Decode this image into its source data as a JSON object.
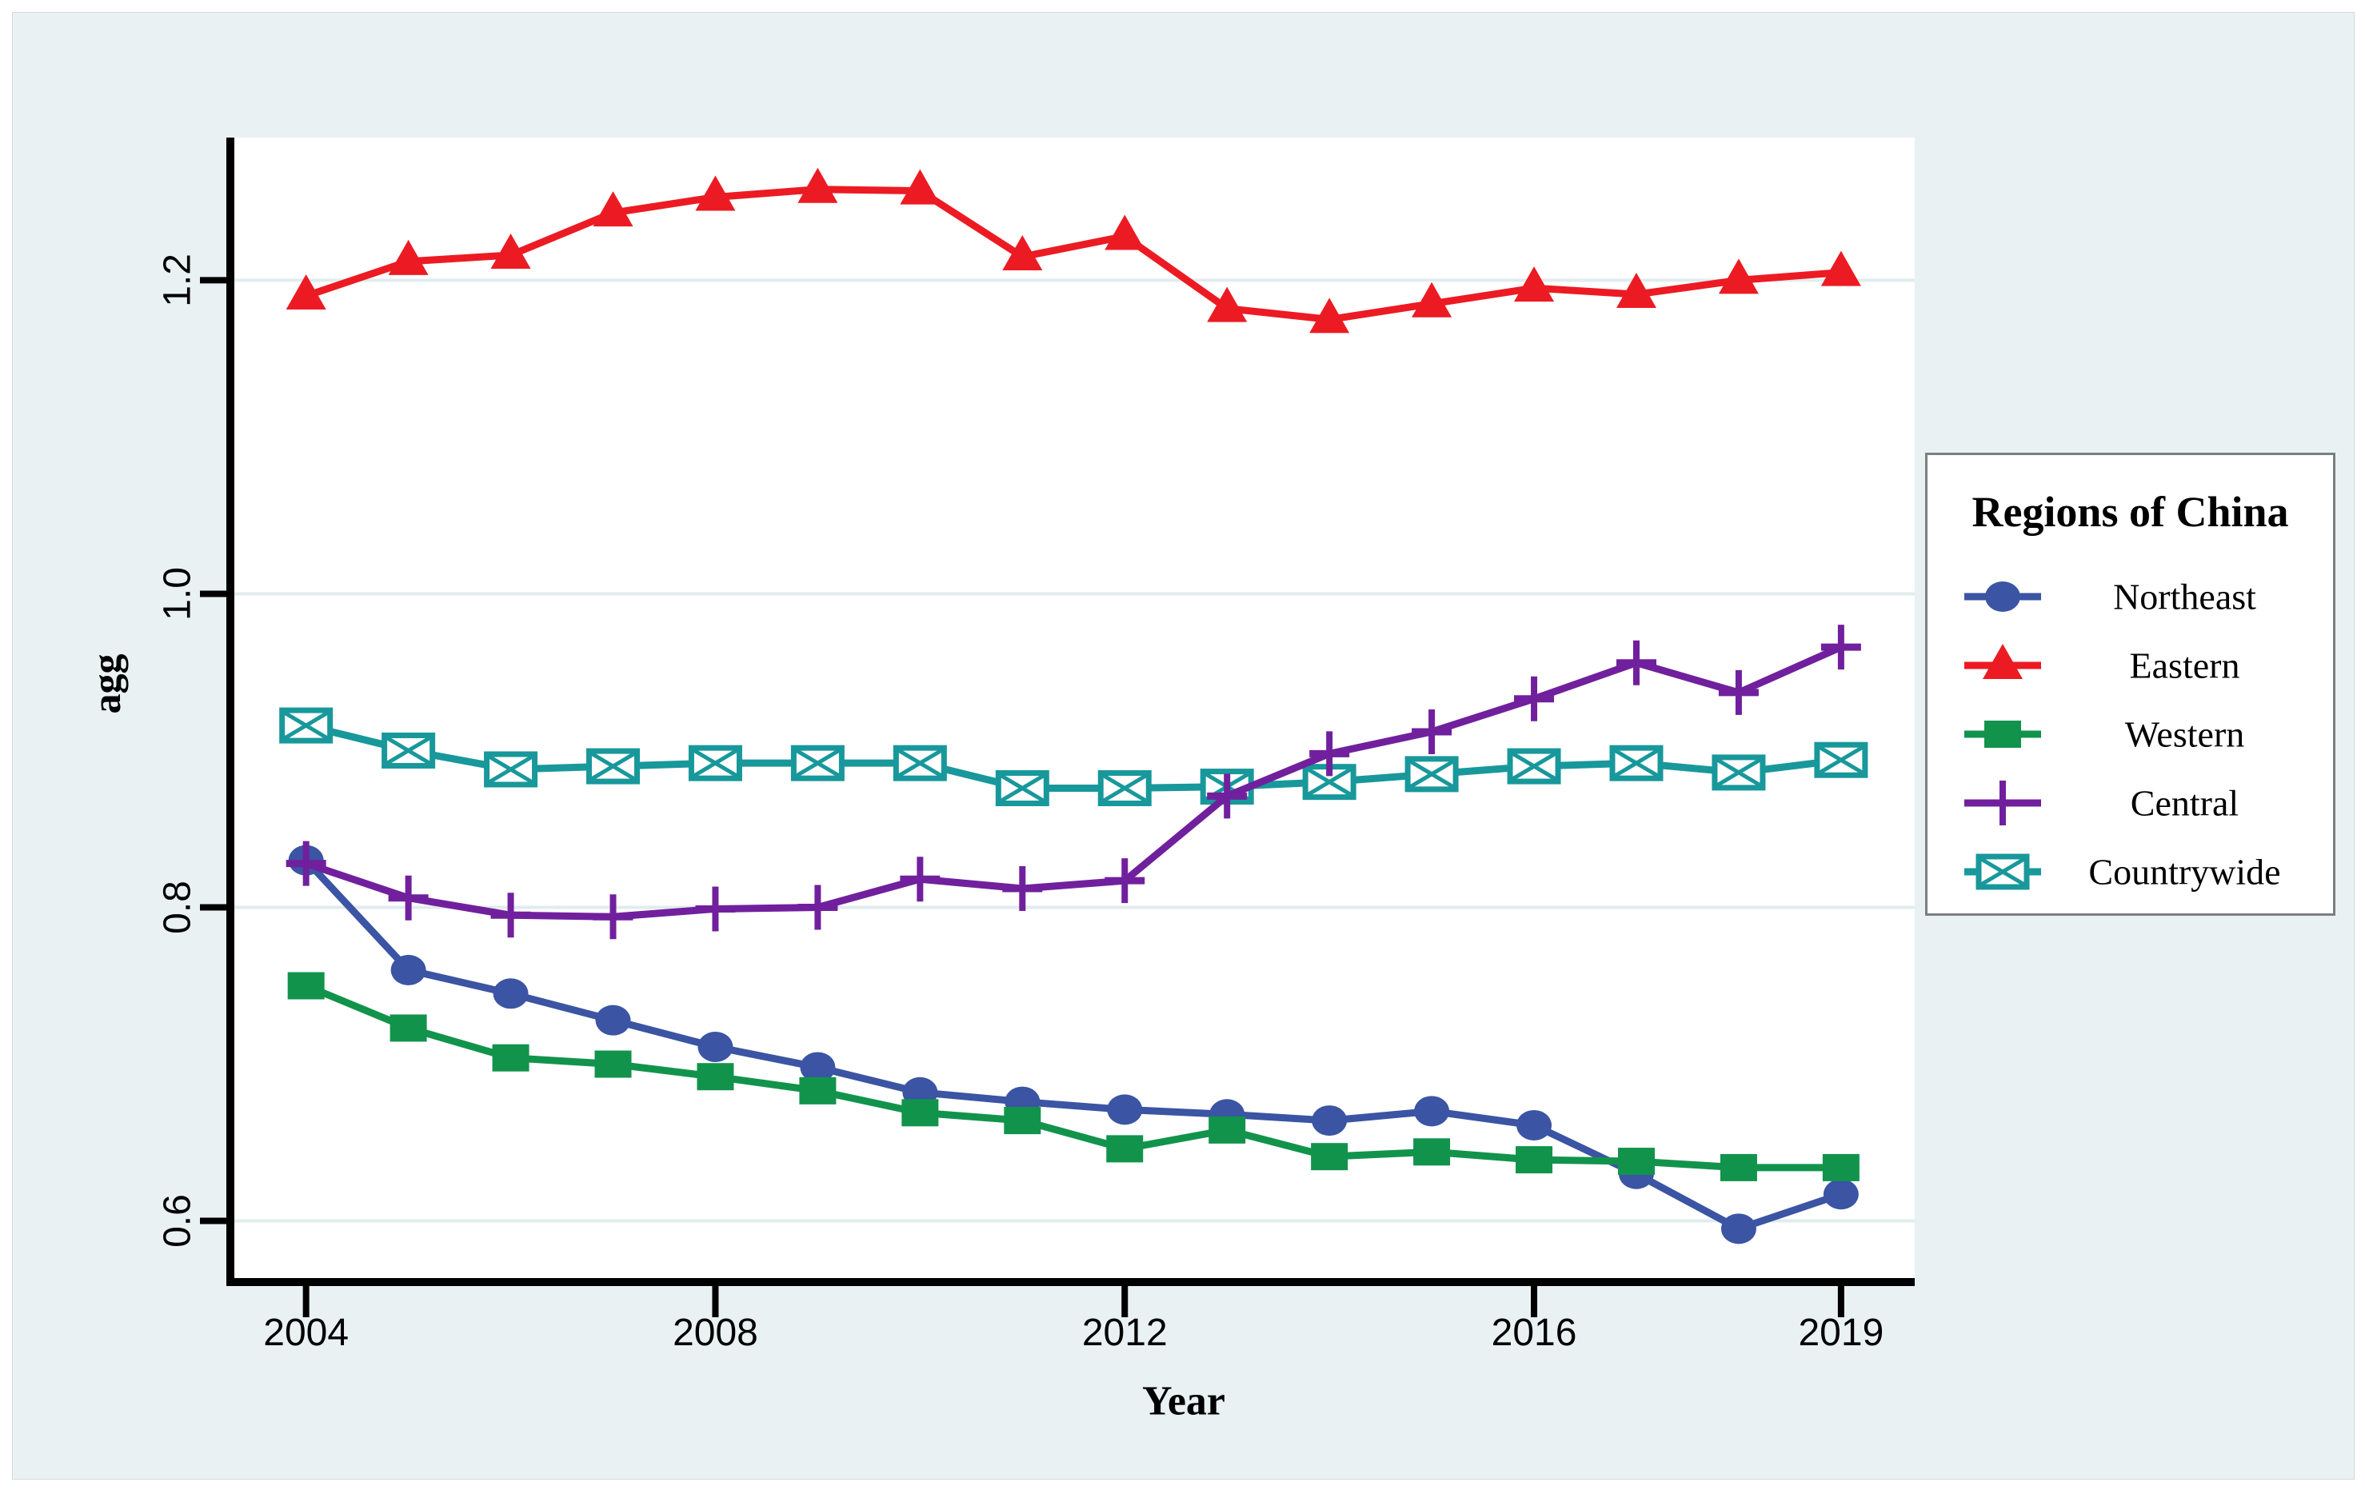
{
  "page": {
    "background": "#ffffff",
    "panel_color": "#e9f1f2"
  },
  "chart_data": {
    "type": "line",
    "title": "",
    "xlabel": "Year",
    "ylabel": "agg",
    "x": [
      2004,
      2005,
      2006,
      2007,
      2008,
      2009,
      2010,
      2011,
      2012,
      2013,
      2014,
      2015,
      2016,
      2017,
      2018,
      2019
    ],
    "xlim": [
      2003.26,
      2019.72
    ],
    "ylim": [
      0.561,
      1.291
    ],
    "x_ticks": [
      {
        "value": 2004,
        "label": "2004"
      },
      {
        "value": 2008,
        "label": "2008"
      },
      {
        "value": 2012,
        "label": "2012"
      },
      {
        "value": 2016,
        "label": "2016"
      },
      {
        "value": 2019,
        "label": "2019"
      }
    ],
    "y_ticks": [
      {
        "value": 0.6,
        "label": "0.6"
      },
      {
        "value": 0.8,
        "label": "0.8"
      },
      {
        "value": 1.0,
        "label": "1.0"
      },
      {
        "value": 1.2,
        "label": "1.2"
      }
    ],
    "grid": true,
    "legend_position": "right",
    "series": [
      {
        "name": "Northeast",
        "color": "#3b54a3",
        "marker": "circle",
        "values": [
          0.83,
          0.76,
          0.745,
          0.728,
          0.711,
          0.698,
          0.682,
          0.676,
          0.671,
          0.668,
          0.664,
          0.67,
          0.661,
          0.63,
          0.595,
          0.617
        ]
      },
      {
        "name": "Eastern",
        "color": "#ec1b23",
        "marker": "triangle",
        "values": [
          1.19,
          1.212,
          1.216,
          1.243,
          1.253,
          1.258,
          1.257,
          1.215,
          1.228,
          1.182,
          1.175,
          1.185,
          1.195,
          1.191,
          1.2,
          1.205
        ]
      },
      {
        "name": "Western",
        "color": "#12934c",
        "marker": "square",
        "values": [
          0.75,
          0.723,
          0.704,
          0.7,
          0.692,
          0.683,
          0.669,
          0.664,
          0.646,
          0.658,
          0.641,
          0.644,
          0.639,
          0.638,
          0.634,
          0.634
        ]
      },
      {
        "name": "Central",
        "color": "#71209d",
        "marker": "plus",
        "values": [
          0.828,
          0.806,
          0.795,
          0.794,
          0.799,
          0.8,
          0.818,
          0.812,
          0.817,
          0.871,
          0.898,
          0.912,
          0.933,
          0.956,
          0.937,
          0.966
        ]
      },
      {
        "name": "Countrywide",
        "color": "#18989b",
        "marker": "crossed_box",
        "values": [
          0.916,
          0.9,
          0.888,
          0.89,
          0.892,
          0.892,
          0.892,
          0.876,
          0.876,
          0.877,
          0.88,
          0.885,
          0.89,
          0.892,
          0.886,
          0.894
        ]
      }
    ]
  },
  "legend": {
    "title": "Regions of China"
  },
  "colors": {
    "grid": "#e2ecee",
    "axis": "#000000",
    "tick_label": "#000000",
    "legend_border": "#7a7f7f"
  }
}
